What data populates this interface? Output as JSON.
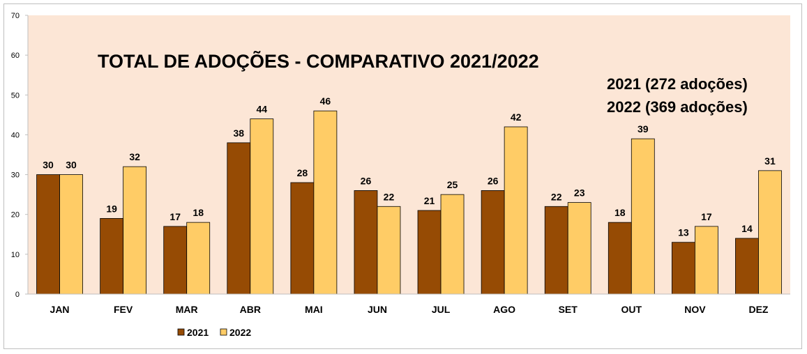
{
  "chart_data": {
    "type": "bar",
    "title": "TOTAL DE ADOÇÕES - COMPARATIVO 2021/2022",
    "annotations": [
      "2021 (272 adoções)",
      "2022 (369 adoções)"
    ],
    "categories": [
      "JAN",
      "FEV",
      "MAR",
      "ABR",
      "MAI",
      "JUN",
      "JUL",
      "AGO",
      "SET",
      "OUT",
      "NOV",
      "DEZ"
    ],
    "series": [
      {
        "name": "2021",
        "color": "#964B04",
        "values": [
          30,
          19,
          17,
          38,
          28,
          26,
          21,
          26,
          22,
          18,
          13,
          14
        ]
      },
      {
        "name": "2022",
        "color": "#FFCC66",
        "values": [
          30,
          32,
          18,
          44,
          46,
          22,
          25,
          42,
          23,
          39,
          17,
          31
        ]
      }
    ],
    "ylim": [
      0,
      70
    ],
    "yticks": [
      0,
      10,
      20,
      30,
      40,
      50,
      60,
      70
    ],
    "plot_background": "#FCE6D6",
    "grid": false,
    "legend_position": "bottom"
  }
}
